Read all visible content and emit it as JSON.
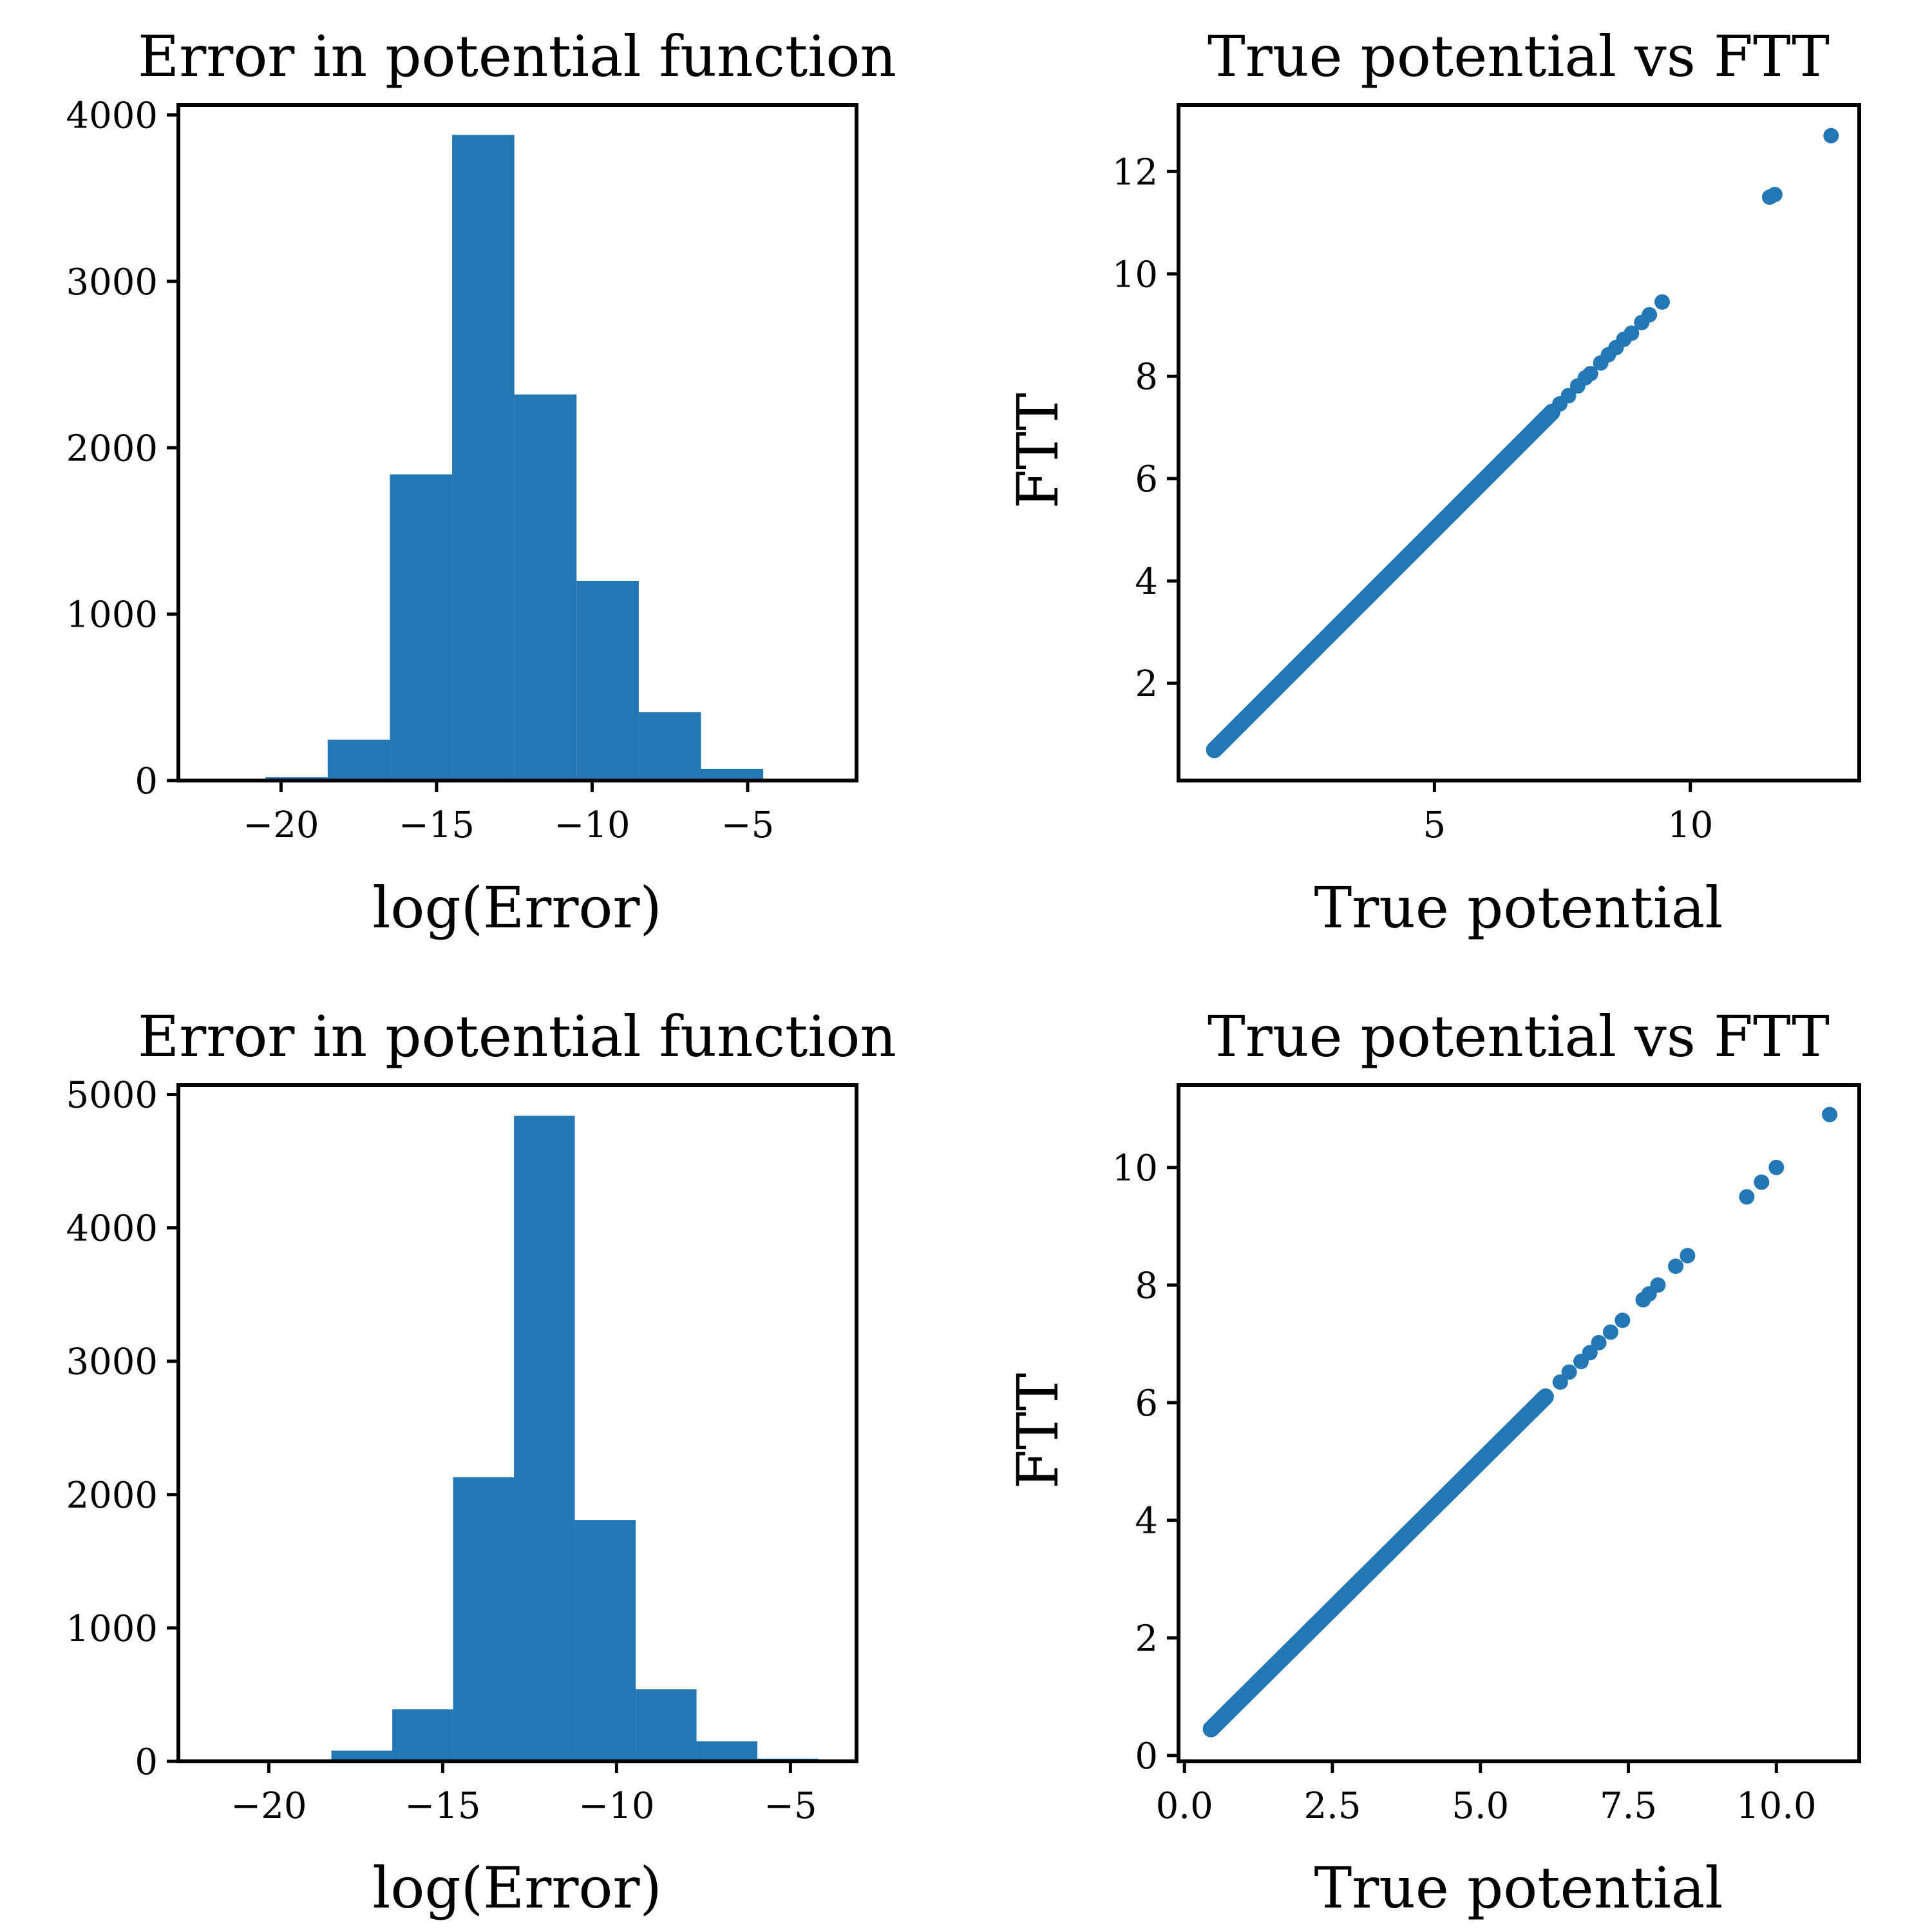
{
  "colors": {
    "series": "#2277b4",
    "axis": "#000000",
    "background": "#ffffff"
  },
  "chart_data": [
    {
      "type": "bar",
      "subtype": "histogram",
      "title": "Error in potential function",
      "xlabel": "log(Error)",
      "ylabel": "",
      "xlim": [
        -23.3,
        -1.5
      ],
      "ylim": [
        0,
        4060
      ],
      "xticks": [
        -20,
        -15,
        -10,
        -5
      ],
      "xticklabels": [
        "−20",
        "−15",
        "−10",
        "−5"
      ],
      "yticks": [
        0,
        1000,
        2000,
        3000,
        4000
      ],
      "yticklabels": [
        "0",
        "1000",
        "2000",
        "3000",
        "4000"
      ],
      "bin_edges": [
        -22.5,
        -20.5,
        -18.5,
        -16.5,
        -14.5,
        -12.5,
        -10.5,
        -8.5,
        -6.5,
        -4.5,
        -2.5
      ],
      "values": [
        3,
        20,
        245,
        1840,
        3880,
        2320,
        1200,
        410,
        70,
        8
      ]
    },
    {
      "type": "scatter",
      "title": "True potential vs FTT",
      "xlabel": "True potential",
      "ylabel": "FTT",
      "xlim": [
        0.0,
        13.3
      ],
      "ylim": [
        0.1,
        13.3
      ],
      "xticks": [
        5,
        10
      ],
      "xticklabels": [
        "5",
        "10"
      ],
      "yticks": [
        2,
        4,
        6,
        8,
        10,
        12
      ],
      "yticklabels": [
        "2",
        "4",
        "6",
        "8",
        "10",
        "12"
      ],
      "line": {
        "from": 0.7,
        "to": 7.3,
        "note": "dense points along y = x"
      },
      "points": [
        [
          7.45,
          7.46
        ],
        [
          7.62,
          7.62
        ],
        [
          7.8,
          7.81
        ],
        [
          7.95,
          7.97
        ],
        [
          8.05,
          8.05
        ],
        [
          8.25,
          8.26
        ],
        [
          8.4,
          8.42
        ],
        [
          8.55,
          8.56
        ],
        [
          8.7,
          8.72
        ],
        [
          8.85,
          8.84
        ],
        [
          9.05,
          9.05
        ],
        [
          9.2,
          9.2
        ],
        [
          9.45,
          9.45
        ],
        [
          11.55,
          11.5
        ],
        [
          11.65,
          11.55
        ],
        [
          12.75,
          12.7
        ]
      ]
    },
    {
      "type": "bar",
      "subtype": "histogram",
      "title": "Error in potential function",
      "xlabel": "log(Error)",
      "ylabel": "",
      "xlim": [
        -22.6,
        -3.1
      ],
      "ylim": [
        0,
        5070
      ],
      "xticks": [
        -20,
        -15,
        -10,
        -5
      ],
      "xticklabels": [
        "−20",
        "−15",
        "−10",
        "−5"
      ],
      "yticks": [
        0,
        1000,
        2000,
        3000,
        4000,
        5000
      ],
      "yticklabels": [
        "0",
        "1000",
        "2000",
        "3000",
        "4000",
        "5000"
      ],
      "bin_edges": [
        -21.7,
        -19.95,
        -18.2,
        -16.45,
        -14.7,
        -12.95,
        -11.2,
        -9.45,
        -7.7,
        -5.95,
        -4.2
      ],
      "values": [
        2,
        5,
        80,
        390,
        2130,
        4840,
        1810,
        540,
        150,
        20
      ]
    },
    {
      "type": "scatter",
      "title": "True potential vs FTT",
      "xlabel": "True potential",
      "ylabel": "FTT",
      "xlim": [
        -0.1,
        11.4
      ],
      "ylim": [
        -0.1,
        11.4
      ],
      "xticks": [
        0.0,
        2.5,
        5.0,
        7.5,
        10.0
      ],
      "xticklabels": [
        "0.0",
        "2.5",
        "5.0",
        "7.5",
        "10.0"
      ],
      "yticks": [
        0,
        2,
        4,
        6,
        8,
        10
      ],
      "yticklabels": [
        "0",
        "2",
        "4",
        "6",
        "8",
        "10"
      ],
      "line": {
        "from": 0.45,
        "to": 6.1,
        "note": "dense points along y = x"
      },
      "points": [
        [
          6.35,
          6.35
        ],
        [
          6.5,
          6.52
        ],
        [
          6.7,
          6.7
        ],
        [
          6.85,
          6.85
        ],
        [
          7.0,
          7.02
        ],
        [
          7.2,
          7.2
        ],
        [
          7.4,
          7.4
        ],
        [
          7.75,
          7.75
        ],
        [
          7.85,
          7.85
        ],
        [
          8.0,
          8.0
        ],
        [
          8.3,
          8.32
        ],
        [
          8.5,
          8.5
        ],
        [
          9.5,
          9.5
        ],
        [
          9.75,
          9.75
        ],
        [
          10.0,
          10.0
        ],
        [
          10.9,
          10.9
        ]
      ]
    }
  ]
}
